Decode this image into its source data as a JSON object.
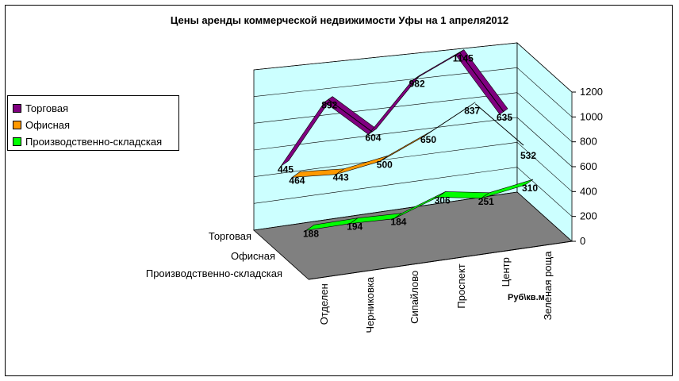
{
  "chart_data": {
    "type": "line",
    "title": "Цены аренды коммерческой недвижимости Уфы на 1 апреля2012",
    "categories": [
      "Отделен",
      "Черниковка",
      "Сипайлово",
      "Проспект",
      "Центр",
      "Зеленая роща"
    ],
    "series": [
      {
        "name": "Торговая",
        "values": [
          445,
          892,
          604,
          982,
          1145,
          635
        ],
        "color": "#800080"
      },
      {
        "name": "Офисная",
        "values": [
          464,
          443,
          500,
          650,
          837,
          null
        ],
        "color": "#FF9900"
      },
      {
        "name": "Производственно-складская",
        "values": [
          188,
          194,
          184,
          306,
          251,
          310
        ],
        "color": "#00FF00"
      }
    ],
    "extra_labels": [
      {
        "series": "Офисная",
        "value": 532
      }
    ],
    "z_labels": [
      "Торговая",
      "Офисная",
      "Производственно-складская"
    ],
    "ylabel": "Руб\\кв.м.",
    "ylim": [
      0,
      1200
    ],
    "yticks": [
      "0",
      "200",
      "400",
      "600",
      "800",
      "1000",
      "1200"
    ],
    "grid": true,
    "legend_position": "left",
    "wall_color": "#CCFFFF",
    "floor_color": "#808080"
  }
}
